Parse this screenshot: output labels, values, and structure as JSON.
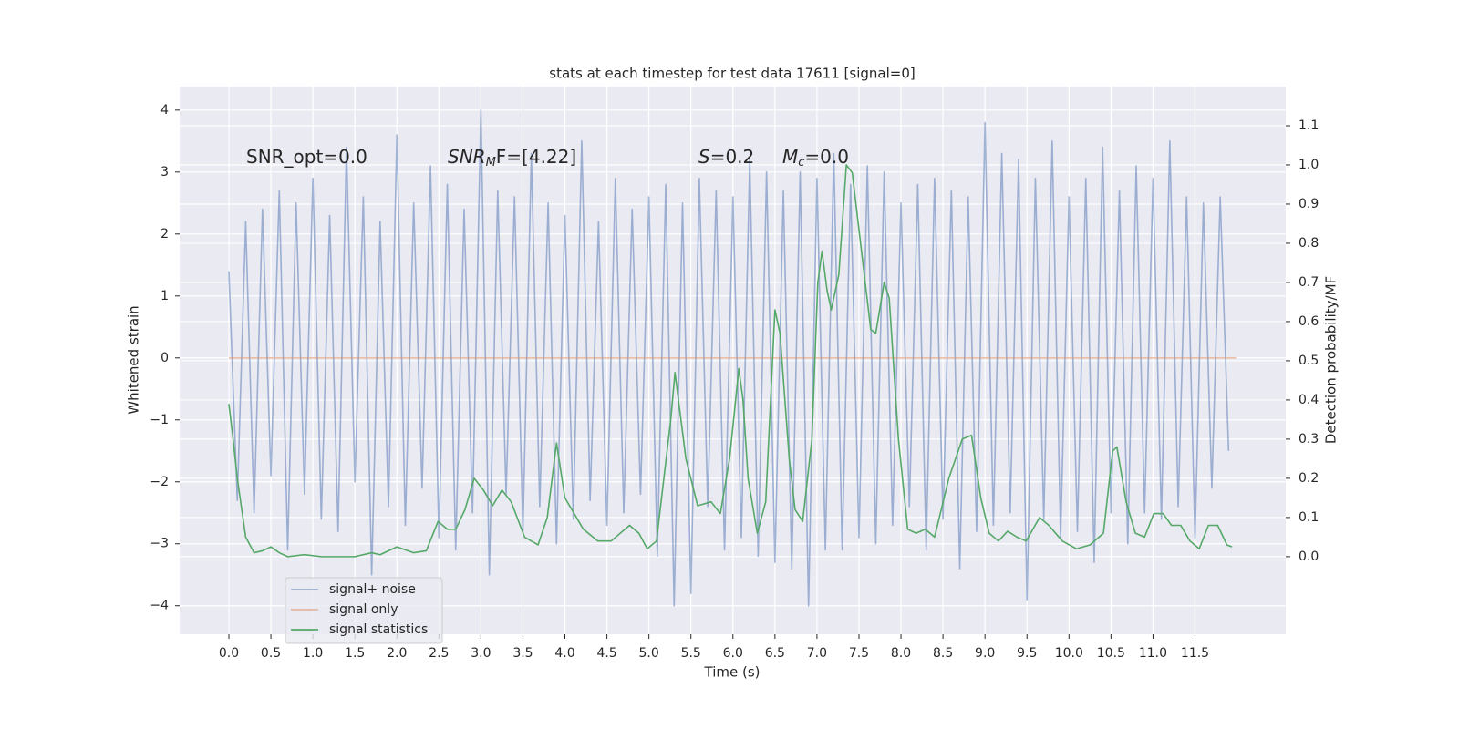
{
  "chart_data": {
    "type": "line",
    "title": "stats at each timestep for test data 17611 [signal=0]",
    "xlabel": "Time (s)",
    "ylabel": "Whitened strain",
    "y2label": "Detection probability/MF",
    "annotations": [
      {
        "parts": [
          "SNR_opt=0.0"
        ]
      },
      {
        "parts": [
          "SNR",
          "M",
          "F=[4.22]"
        ]
      },
      {
        "parts": [
          "S",
          "=0.2"
        ]
      },
      {
        "parts": [
          "M",
          "c",
          "=0.0"
        ]
      }
    ],
    "xlim": [
      -0.586,
      12.58
    ],
    "ylim": [
      -4.46,
      4.38
    ],
    "y2lim": [
      -0.198,
      1.2
    ],
    "xticks": [
      {
        "value": 0,
        "label": "0.0"
      },
      0.5,
      {
        "value": 1,
        "label": "1.0"
      },
      1.5,
      {
        "value": 2,
        "label": "2.0"
      },
      2.5,
      {
        "value": 3,
        "label": "3.0"
      },
      3.5,
      {
        "value": 4,
        "label": "4.0"
      },
      4.5,
      {
        "value": 5,
        "label": "5.0"
      },
      5.5,
      {
        "value": 6,
        "label": "6.0"
      },
      6.5,
      {
        "value": 7,
        "label": "7.0"
      },
      7.5,
      {
        "value": 8,
        "label": "8.0"
      },
      8.5,
      {
        "value": 9,
        "label": "9.0"
      },
      9.5,
      {
        "value": 10,
        "label": "10.0"
      },
      10.5,
      {
        "value": 11,
        "label": "11.0"
      },
      11.5
    ],
    "yticks": [
      {
        "value": -4,
        "label": "−4"
      },
      {
        "value": -3,
        "label": "−3"
      },
      {
        "value": -2,
        "label": "−2"
      },
      {
        "value": -1,
        "label": "−1"
      },
      0,
      1,
      2,
      3,
      4
    ],
    "y2ticks": [
      {
        "value": 0,
        "label": "0.0"
      },
      0.1,
      0.2,
      0.3,
      0.4,
      0.5,
      0.6,
      0.7,
      0.8,
      0.9,
      {
        "value": 1,
        "label": "1.0"
      },
      1.1
    ],
    "grid": true,
    "legend": "lower left",
    "series": [
      {
        "name": "signal+ noise",
        "color": "#4c72b0",
        "opacity": 0.5,
        "x": [
          0,
          0.1,
          0.2,
          0.3,
          0.4,
          0.5,
          0.6,
          0.7,
          0.8,
          0.9,
          1,
          1.1,
          1.2,
          1.3,
          1.4,
          1.5,
          1.6,
          1.7,
          1.8,
          1.9,
          2,
          2.1,
          2.2,
          2.3,
          2.4,
          2.5,
          2.6,
          2.7,
          2.8,
          2.9,
          3,
          3.1,
          3.2,
          3.3,
          3.4,
          3.5,
          3.6,
          3.7,
          3.8,
          3.9,
          4,
          4.1,
          4.2,
          4.3,
          4.4,
          4.5,
          4.6,
          4.7,
          4.8,
          4.9,
          5,
          5.1,
          5.2,
          5.3,
          5.4,
          5.5,
          5.6,
          5.7,
          5.8,
          5.9,
          6,
          6.1,
          6.2,
          6.3,
          6.4,
          6.5,
          6.6,
          6.7,
          6.8,
          6.9,
          7,
          7.1,
          7.2,
          7.3,
          7.4,
          7.5,
          7.6,
          7.7,
          7.8,
          7.9,
          8,
          8.1,
          8.2,
          8.3,
          8.4,
          8.5,
          8.6,
          8.7,
          8.8,
          8.9,
          9,
          9.1,
          9.2,
          9.3,
          9.4,
          9.5,
          9.6,
          9.7,
          9.8,
          9.9,
          10,
          10.1,
          10.2,
          10.3,
          10.4,
          10.5,
          10.6,
          10.7,
          10.8,
          10.9,
          11,
          11.1,
          11.2,
          11.3,
          11.4,
          11.5,
          11.6,
          11.7,
          11.8,
          11.9
        ],
        "values": [
          1.4,
          -2.3,
          2.2,
          -2.5,
          2.4,
          -1.9,
          2.7,
          -3.1,
          2.5,
          -2.2,
          2.9,
          -2.6,
          2.3,
          -2.8,
          3.4,
          -2.0,
          2.6,
          -3.5,
          2.2,
          -2.4,
          3.6,
          -2.7,
          2.5,
          -2.1,
          3.1,
          -2.9,
          2.8,
          -3.1,
          2.4,
          -2.5,
          4.0,
          -3.5,
          2.7,
          -2.2,
          2.6,
          -2.8,
          3.3,
          -2.4,
          2.5,
          -3.0,
          2.3,
          -2.6,
          3.5,
          -2.3,
          2.2,
          -2.7,
          2.9,
          -2.5,
          2.4,
          -2.2,
          2.6,
          -3.2,
          2.8,
          -4.0,
          2.5,
          -3.8,
          2.9,
          -2.4,
          2.7,
          -3.1,
          2.6,
          -2.9,
          3.2,
          -3.2,
          3.0,
          -3.3,
          2.7,
          -3.4,
          3.0,
          -4.0,
          2.9,
          -3.1,
          3.3,
          -3.1,
          2.8,
          -2.9,
          3.1,
          -3.0,
          3.0,
          -2.7,
          2.5,
          -2.4,
          2.8,
          -3.1,
          2.9,
          -2.6,
          2.7,
          -3.4,
          2.6,
          -2.8,
          3.8,
          -2.7,
          3.3,
          -2.5,
          3.2,
          -3.9,
          2.9,
          -2.6,
          3.5,
          -2.9,
          2.6,
          -2.8,
          2.9,
          -3.3,
          3.4,
          -2.5,
          2.7,
          -3.0,
          3.1,
          -2.5,
          2.9,
          -2.6,
          3.5,
          -2.4,
          2.6,
          -2.9,
          2.5,
          -2.1,
          2.6,
          -1.5
        ]
      },
      {
        "name": "signal only",
        "color": "#dd8452",
        "opacity": 0.5,
        "x": [
          0,
          11.99
        ],
        "values": [
          0,
          0
        ]
      },
      {
        "name": "signal statistics",
        "color": "#55a868",
        "opacity": 1,
        "axis": "y2",
        "x": [
          0,
          0.05,
          0.1,
          0.2,
          0.3,
          0.4,
          0.5,
          0.6,
          0.7,
          0.9,
          1.1,
          1.3,
          1.5,
          1.7,
          1.8,
          2.0,
          2.2,
          2.35,
          2.49,
          2.6,
          2.7,
          2.81,
          2.92,
          3.03,
          3.14,
          3.25,
          3.36,
          3.52,
          3.68,
          3.79,
          3.9,
          4.0,
          4.22,
          4.39,
          4.55,
          4.77,
          4.88,
          4.98,
          5.09,
          5.26,
          5.31,
          5.44,
          5.58,
          5.74,
          5.85,
          5.96,
          6.07,
          6.12,
          6.18,
          6.29,
          6.39,
          6.5,
          6.56,
          6.67,
          6.74,
          6.83,
          6.94,
          7.01,
          7.06,
          7.12,
          7.17,
          7.26,
          7.35,
          7.42,
          7.53,
          7.64,
          7.7,
          7.8,
          7.86,
          7.97,
          8.08,
          8.18,
          8.29,
          8.4,
          8.57,
          8.73,
          8.84,
          8.95,
          9.05,
          9.16,
          9.27,
          9.38,
          9.49,
          9.65,
          9.76,
          9.92,
          10.09,
          10.25,
          10.41,
          10.52,
          10.57,
          10.68,
          10.79,
          10.9,
          11.01,
          11.12,
          11.22,
          11.33,
          11.44,
          11.55,
          11.66,
          11.77,
          11.88,
          11.94
        ],
        "values": [
          0.39,
          0.3,
          0.2,
          0.05,
          0.01,
          0.015,
          0.025,
          0.01,
          0.0,
          0.005,
          0.0,
          0.0,
          0.0,
          0.01,
          0.005,
          0.025,
          0.01,
          0.015,
          0.09,
          0.07,
          0.07,
          0.12,
          0.2,
          0.17,
          0.13,
          0.17,
          0.14,
          0.05,
          0.03,
          0.1,
          0.29,
          0.15,
          0.07,
          0.04,
          0.04,
          0.08,
          0.06,
          0.02,
          0.04,
          0.35,
          0.47,
          0.25,
          0.13,
          0.14,
          0.11,
          0.25,
          0.48,
          0.4,
          0.2,
          0.06,
          0.14,
          0.63,
          0.57,
          0.25,
          0.12,
          0.09,
          0.3,
          0.7,
          0.78,
          0.68,
          0.63,
          0.72,
          1.0,
          0.98,
          0.78,
          0.58,
          0.57,
          0.7,
          0.66,
          0.3,
          0.07,
          0.06,
          0.07,
          0.05,
          0.2,
          0.3,
          0.31,
          0.15,
          0.06,
          0.04,
          0.065,
          0.05,
          0.04,
          0.1,
          0.08,
          0.04,
          0.02,
          0.03,
          0.06,
          0.27,
          0.28,
          0.14,
          0.06,
          0.05,
          0.11,
          0.11,
          0.08,
          0.08,
          0.04,
          0.02,
          0.08,
          0.08,
          0.03,
          0.025
        ]
      }
    ]
  }
}
